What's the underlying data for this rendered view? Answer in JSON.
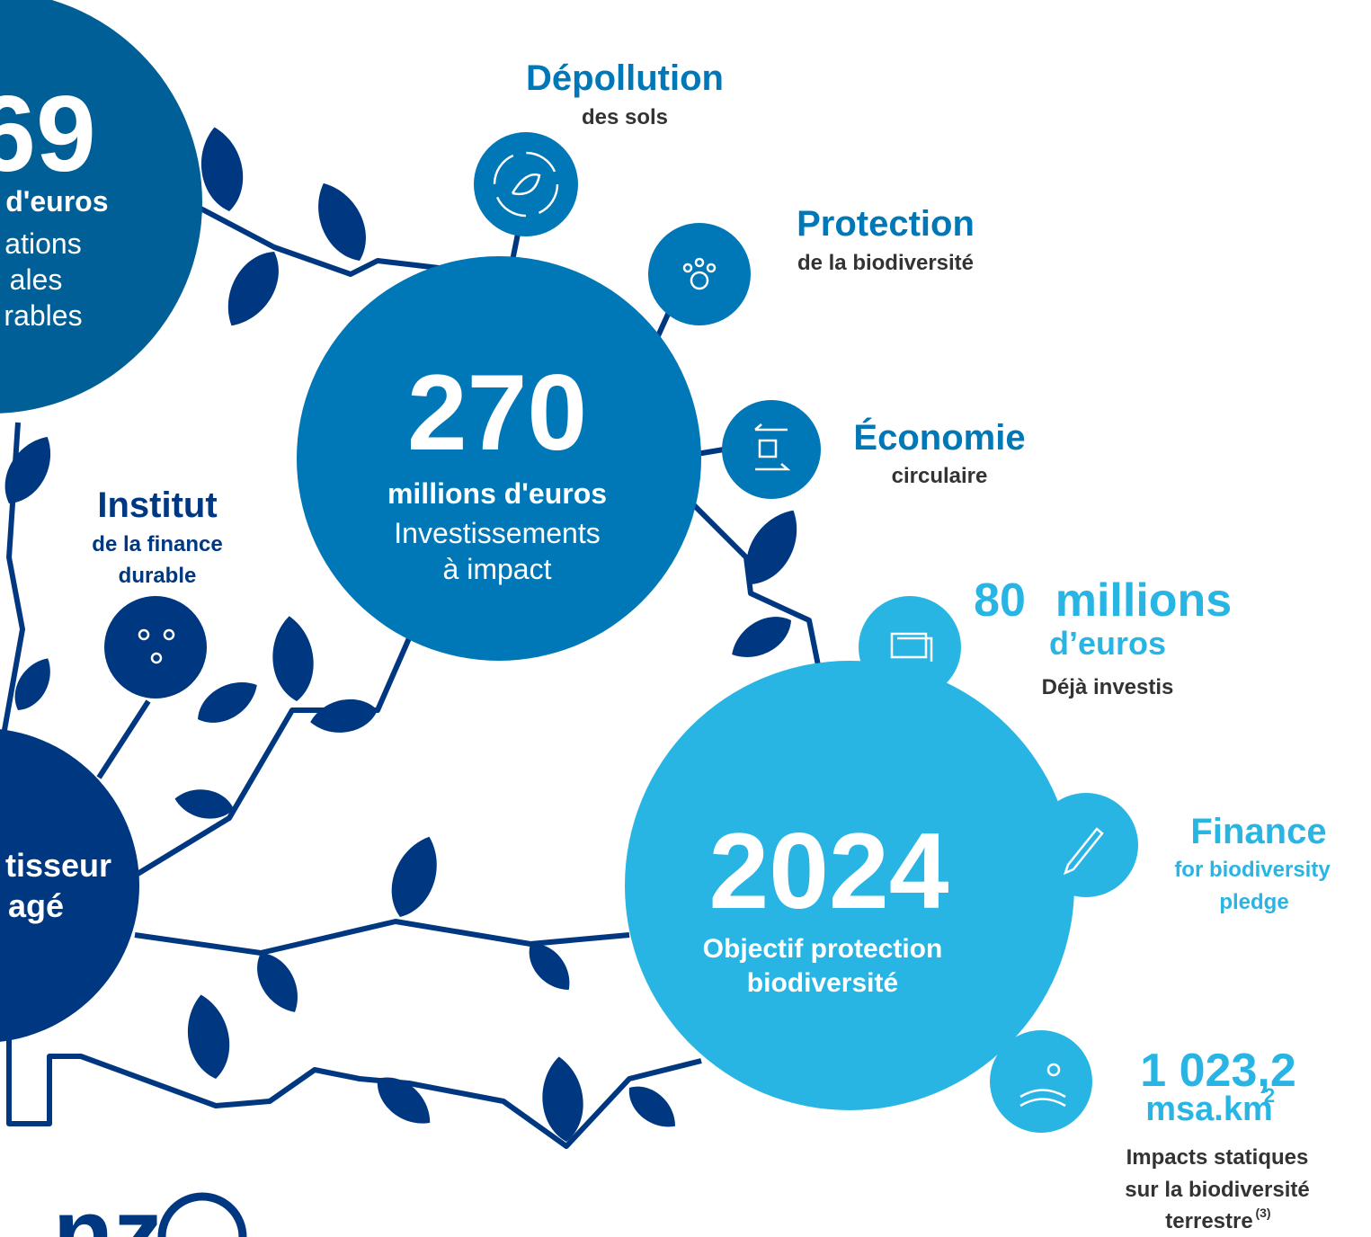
{
  "nodes": {
    "left_top": {
      "value": "69",
      "unit": "s d'euros",
      "lines": [
        "ations",
        "ales",
        "rables"
      ]
    },
    "impact": {
      "value": "270",
      "unit": "millions d'euros",
      "lines": [
        "Investissements",
        "à impact"
      ]
    },
    "objective": {
      "value": "2024",
      "lines": [
        "Objectif protection",
        "biodiversité"
      ]
    },
    "investor": {
      "lines": [
        "tisseur",
        "agé"
      ]
    },
    "depollution": {
      "title": "Dépollution",
      "subtitle": "des sols"
    },
    "protection": {
      "title": "Protection",
      "subtitle": "de la biodiversité"
    },
    "economie": {
      "title": "Économie",
      "subtitle": "circulaire"
    },
    "institut": {
      "title": "Institut",
      "lines": [
        "de la finance",
        "durable"
      ]
    },
    "invested": {
      "value": "80",
      "unit": "millions",
      "unit2": "d’euros",
      "subtitle": "Déjà investis"
    },
    "finance": {
      "title": "Finance",
      "lines": [
        "for biodiversity",
        "pledge"
      ]
    },
    "msa": {
      "value": "1 023,2",
      "unit": "msa.km",
      "unit_sup": "2",
      "lines": [
        "Impacts statiques",
        "sur la biodiversité",
        "terrestre"
      ],
      "note": "(3)"
    }
  },
  "logo": "nz"
}
